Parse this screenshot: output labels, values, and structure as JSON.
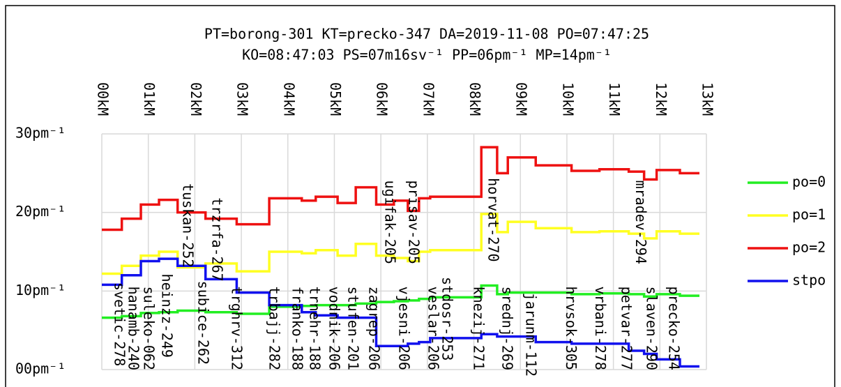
{
  "chart_data": {
    "type": "step",
    "title": "PT=borong-301 KT=precko-347 DA=2019-11-08 PO=07:47:25",
    "subtitle": "KO=08:47:03 PS=07m16sv⁻¹ PP=06pm⁻¹ MP=14pm⁻¹",
    "x": [
      0,
      0.43,
      0.84,
      1.23,
      1.63,
      2.23,
      2.9,
      3.6,
      4.3,
      4.6,
      5.07,
      5.46,
      5.9,
      6.28,
      6.58,
      6.82,
      7.06,
      8.16,
      8.5,
      8.73,
      9.33,
      10.1,
      10.7,
      11.33,
      11.66,
      11.93,
      12.43,
      12.85
    ],
    "series": [
      {
        "name": "po=0",
        "color": "#22ee22",
        "values": [
          6.6,
          6.8,
          7.2,
          7.3,
          7.5,
          7.3,
          7.1,
          8.0,
          8.1,
          8.2,
          8.2,
          8.4,
          8.6,
          8.7,
          8.8,
          9.0,
          9.2,
          10.7,
          9.6,
          9.8,
          9.8,
          9.6,
          9.7,
          9.6,
          9.3,
          9.6,
          9.4,
          9.4
        ]
      },
      {
        "name": "po=1",
        "color": "#ffff22",
        "values": [
          12.2,
          13.2,
          14.5,
          15,
          13,
          13.5,
          12.5,
          15,
          14.8,
          15.2,
          14.5,
          16,
          14.5,
          14.2,
          13.8,
          15,
          15.2,
          19.8,
          17.5,
          18.8,
          18,
          17.5,
          17.6,
          17.3,
          16.7,
          17.6,
          17.3,
          17.3
        ]
      },
      {
        "name": "po=2",
        "color": "#ee1111",
        "values": [
          17.8,
          19.2,
          21,
          21.6,
          20,
          19.2,
          18.5,
          21.8,
          21.5,
          22,
          21.2,
          23.2,
          21,
          21.5,
          20.2,
          21.8,
          22,
          28.3,
          25,
          27,
          26,
          25.3,
          25.5,
          25.2,
          24.2,
          25.4,
          25,
          25
        ]
      },
      {
        "name": "stpo",
        "color": "#1111ee",
        "values": [
          10.8,
          12,
          13.8,
          14.1,
          13.2,
          11.5,
          9.8,
          8.2,
          7.3,
          6.9,
          6.6,
          6.6,
          3,
          3,
          3.3,
          3.5,
          4,
          4.5,
          4.2,
          4.2,
          3.5,
          3.3,
          3.3,
          2.4,
          2.0,
          1.3,
          0.4,
          0.4
        ]
      }
    ],
    "xlim": [
      0,
      13
    ],
    "xticks": [
      {
        "value": 0,
        "label": "00kM"
      },
      {
        "value": 1,
        "label": "01kM"
      },
      {
        "value": 2,
        "label": "02kM"
      },
      {
        "value": 3,
        "label": "03kM"
      },
      {
        "value": 4,
        "label": "04kM"
      },
      {
        "value": 5,
        "label": "05kM"
      },
      {
        "value": 6,
        "label": "06kM"
      },
      {
        "value": 7,
        "label": "07kM"
      },
      {
        "value": 8,
        "label": "08kM"
      },
      {
        "value": 9,
        "label": "09kM"
      },
      {
        "value": 10,
        "label": "10kM"
      },
      {
        "value": 11,
        "label": "11kM"
      },
      {
        "value": 12,
        "label": "12kM"
      },
      {
        "value": 13,
        "label": "13kM"
      }
    ],
    "ylim": [
      0,
      30
    ],
    "yticks": [
      {
        "value": 0,
        "label": "00pm⁻¹"
      },
      {
        "value": 10,
        "label": "10pm⁻¹"
      },
      {
        "value": 20,
        "label": "20pm⁻¹"
      },
      {
        "value": 30,
        "label": "30pm⁻¹"
      }
    ],
    "grid": true,
    "legend": "right",
    "annotations": [
      {
        "text": "svetic-278",
        "x": 0.36,
        "y": 11.1
      },
      {
        "text": "hanamb-240",
        "x": 0.66,
        "y": 10.6
      },
      {
        "text": "suleko-062",
        "x": 0.99,
        "y": 10.6
      },
      {
        "text": "heinzz-249",
        "x": 1.38,
        "y": 12.2
      },
      {
        "text": "tuskan-252",
        "x": 1.83,
        "y": 23.7
      },
      {
        "text": "subice-262",
        "x": 2.16,
        "y": 11.3
      },
      {
        "text": "trzrfa-267",
        "x": 2.46,
        "y": 21.9
      },
      {
        "text": "trghrv-312",
        "x": 2.88,
        "y": 10.6
      },
      {
        "text": "trbajj-282",
        "x": 3.69,
        "y": 10.6
      },
      {
        "text": "franko-188",
        "x": 4.18,
        "y": 10.6
      },
      {
        "text": "trnehr-188",
        "x": 4.56,
        "y": 10.6
      },
      {
        "text": "vodnik-206",
        "x": 4.98,
        "y": 10.6
      },
      {
        "text": "stufen-201",
        "x": 5.38,
        "y": 10.6
      },
      {
        "text": "zagrep-206",
        "x": 5.83,
        "y": 10.6
      },
      {
        "text": "ugifak-205",
        "x": 6.18,
        "y": 24.1
      },
      {
        "text": "vjesni-206",
        "x": 6.48,
        "y": 10.6
      },
      {
        "text": "prisav-205",
        "x": 6.69,
        "y": 24.1
      },
      {
        "text": "veslar-206",
        "x": 7.11,
        "y": 10.6
      },
      {
        "text": "stdosr-253",
        "x": 7.41,
        "y": 11.8
      },
      {
        "text": "knezij-271",
        "x": 8.08,
        "y": 10.6
      },
      {
        "text": "horvat-270",
        "x": 8.4,
        "y": 24.4
      },
      {
        "text": "srednj-269",
        "x": 8.7,
        "y": 10.6
      },
      {
        "text": "jarunm-112",
        "x": 9.21,
        "y": 9.8
      },
      {
        "text": "hrvsok-305",
        "x": 10.07,
        "y": 10.6
      },
      {
        "text": "vrbani-278",
        "x": 10.7,
        "y": 10.6
      },
      {
        "text": "petvar-277",
        "x": 11.26,
        "y": 10.6
      },
      {
        "text": "mradev-294",
        "x": 11.57,
        "y": 24.1
      },
      {
        "text": "slaven-290",
        "x": 11.8,
        "y": 10.6
      },
      {
        "text": "precko-254",
        "x": 12.28,
        "y": 10.6
      }
    ]
  }
}
